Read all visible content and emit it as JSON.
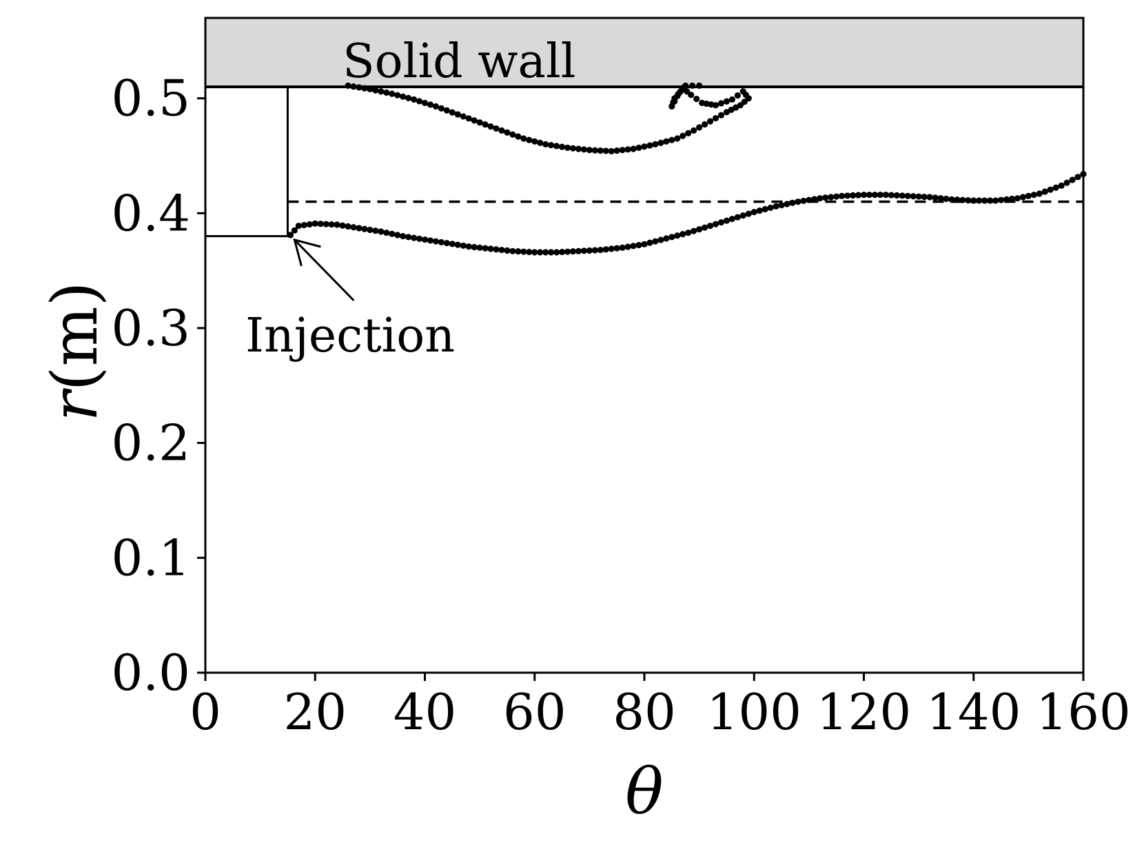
{
  "chart_data": {
    "type": "scatter",
    "xlabel": "θ",
    "ylabel_symbol": "r",
    "ylabel_unit": "(m)",
    "xlim": [
      0,
      160
    ],
    "ylim": [
      0,
      0.57
    ],
    "xticks": [
      0,
      20,
      40,
      60,
      80,
      100,
      120,
      140,
      160
    ],
    "yticks": [
      0.0,
      0.1,
      0.2,
      0.3,
      0.4,
      0.5
    ],
    "xtick_labels": [
      "0",
      "20",
      "40",
      "60",
      "80",
      "100",
      "120",
      "140",
      "160"
    ],
    "ytick_labels": [
      "0.0",
      "0.1",
      "0.2",
      "0.3",
      "0.4",
      "0.5"
    ],
    "grid": false,
    "wall": {
      "label": "Solid wall",
      "r_from": 0.51,
      "r_to": 0.57,
      "color": "#d9d9d9"
    },
    "injection": {
      "label": "Injection",
      "theta_end": 15,
      "r_bottom": 0.38,
      "r_top": 0.51,
      "arrow_to": [
        16,
        0.378
      ],
      "arrow_text_at": [
        16,
        0.3
      ]
    },
    "dashed_line_r": 0.41,
    "series": [
      {
        "points": [
          [
            26,
            0.511
          ],
          [
            30,
            0.508
          ],
          [
            34,
            0.504
          ],
          [
            38,
            0.499
          ],
          [
            42,
            0.493
          ],
          [
            46,
            0.486
          ],
          [
            50,
            0.479
          ],
          [
            54,
            0.472
          ],
          [
            58,
            0.465
          ],
          [
            62,
            0.46
          ],
          [
            66,
            0.457
          ],
          [
            70,
            0.455
          ],
          [
            74,
            0.454
          ],
          [
            78,
            0.456
          ],
          [
            82,
            0.46
          ],
          [
            86,
            0.465
          ],
          [
            89,
            0.472
          ],
          [
            92,
            0.48
          ],
          [
            95,
            0.488
          ],
          [
            97.5,
            0.494
          ],
          [
            99,
            0.5
          ],
          [
            98,
            0.506
          ],
          [
            96,
            0.499
          ],
          [
            93,
            0.494
          ],
          [
            90.5,
            0.496
          ],
          [
            88.5,
            0.503
          ],
          [
            87,
            0.509
          ],
          [
            86,
            0.502
          ],
          [
            85,
            0.493
          ],
          [
            85.5,
            0.5
          ],
          [
            87.5,
            0.511
          ],
          [
            90,
            0.511
          ]
        ]
      },
      {
        "points": [
          [
            15.5,
            0.381
          ],
          [
            17,
            0.389
          ],
          [
            20,
            0.391
          ],
          [
            24,
            0.39
          ],
          [
            28,
            0.387
          ],
          [
            32,
            0.384
          ],
          [
            36,
            0.38
          ],
          [
            40,
            0.377
          ],
          [
            44,
            0.374
          ],
          [
            48,
            0.371
          ],
          [
            52,
            0.369
          ],
          [
            56,
            0.367
          ],
          [
            60,
            0.366
          ],
          [
            64,
            0.366
          ],
          [
            68,
            0.367
          ],
          [
            72,
            0.368
          ],
          [
            76,
            0.37
          ],
          [
            80,
            0.373
          ],
          [
            84,
            0.378
          ],
          [
            88,
            0.383
          ],
          [
            92,
            0.389
          ],
          [
            96,
            0.395
          ],
          [
            100,
            0.401
          ],
          [
            104,
            0.406
          ],
          [
            108,
            0.41
          ],
          [
            112,
            0.413
          ],
          [
            116,
            0.415
          ],
          [
            120,
            0.416
          ],
          [
            124,
            0.416
          ],
          [
            128,
            0.415
          ],
          [
            132,
            0.414
          ],
          [
            136,
            0.412
          ],
          [
            140,
            0.411
          ],
          [
            144,
            0.411
          ],
          [
            148,
            0.413
          ],
          [
            152,
            0.417
          ],
          [
            156,
            0.424
          ],
          [
            160,
            0.434
          ]
        ]
      }
    ]
  }
}
